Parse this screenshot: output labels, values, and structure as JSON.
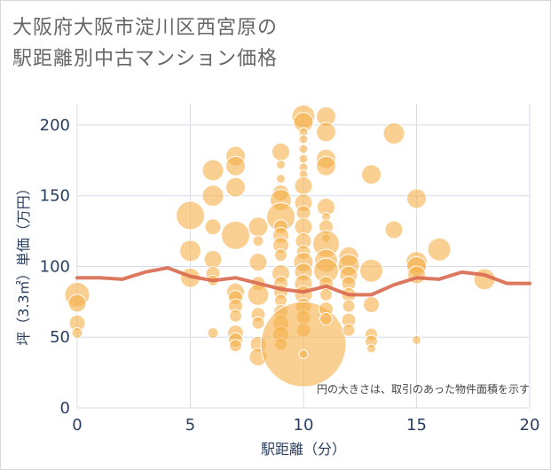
{
  "title_line1": "大阪府大阪市淀川区西宮原の",
  "title_line2": "駅距離別中古マンション価格",
  "annotation": "円の大きさは、取引のあった物件面積を示す",
  "colors": {
    "bubble_fill": "#f5b04a",
    "bubble_stroke": "#ffffff",
    "line": "#d9694f",
    "grid": "#d6dde8",
    "axis_text": "#2a3f5f"
  },
  "chart_data": {
    "type": "scatter",
    "title": "大阪府大阪市淀川区西宮原の 駅距離別中古マンション価格",
    "xlabel": "駅距離（分）",
    "ylabel": "坪（3.3㎡）単価（万円）",
    "xlim": [
      0,
      20
    ],
    "ylim": [
      0,
      215
    ],
    "xticks": [
      0,
      5,
      10,
      15,
      20
    ],
    "yticks": [
      0,
      50,
      100,
      150,
      200
    ],
    "grid": true,
    "series": [
      {
        "type": "bubble",
        "points": [
          {
            "x": 0,
            "y": 80,
            "s": 14
          },
          {
            "x": 0,
            "y": 74,
            "s": 10
          },
          {
            "x": 0,
            "y": 60,
            "s": 9
          },
          {
            "x": 0,
            "y": 53,
            "s": 6
          },
          {
            "x": 5,
            "y": 136,
            "s": 16
          },
          {
            "x": 5,
            "y": 111,
            "s": 12
          },
          {
            "x": 5,
            "y": 92,
            "s": 11
          },
          {
            "x": 6,
            "y": 168,
            "s": 12
          },
          {
            "x": 6,
            "y": 150,
            "s": 12
          },
          {
            "x": 6,
            "y": 128,
            "s": 9
          },
          {
            "x": 6,
            "y": 105,
            "s": 10
          },
          {
            "x": 6,
            "y": 95,
            "s": 8
          },
          {
            "x": 6,
            "y": 90,
            "s": 6
          },
          {
            "x": 6,
            "y": 53,
            "s": 6
          },
          {
            "x": 7,
            "y": 178,
            "s": 11
          },
          {
            "x": 7,
            "y": 171,
            "s": 11
          },
          {
            "x": 7,
            "y": 156,
            "s": 11
          },
          {
            "x": 7,
            "y": 122,
            "s": 16
          },
          {
            "x": 7,
            "y": 82,
            "s": 10
          },
          {
            "x": 7,
            "y": 78,
            "s": 8
          },
          {
            "x": 7,
            "y": 72,
            "s": 8
          },
          {
            "x": 7,
            "y": 65,
            "s": 7
          },
          {
            "x": 7,
            "y": 53,
            "s": 9
          },
          {
            "x": 7,
            "y": 48,
            "s": 8
          },
          {
            "x": 7,
            "y": 44,
            "s": 7
          },
          {
            "x": 8,
            "y": 128,
            "s": 11
          },
          {
            "x": 8,
            "y": 118,
            "s": 6
          },
          {
            "x": 8,
            "y": 103,
            "s": 10
          },
          {
            "x": 8,
            "y": 88,
            "s": 8
          },
          {
            "x": 8,
            "y": 80,
            "s": 12
          },
          {
            "x": 8,
            "y": 66,
            "s": 8
          },
          {
            "x": 8,
            "y": 60,
            "s": 7
          },
          {
            "x": 8,
            "y": 45,
            "s": 9
          },
          {
            "x": 8,
            "y": 36,
            "s": 10
          },
          {
            "x": 9,
            "y": 181,
            "s": 10
          },
          {
            "x": 9,
            "y": 172,
            "s": 5
          },
          {
            "x": 9,
            "y": 162,
            "s": 5
          },
          {
            "x": 9,
            "y": 152,
            "s": 9
          },
          {
            "x": 9,
            "y": 147,
            "s": 12
          },
          {
            "x": 9,
            "y": 135,
            "s": 16
          },
          {
            "x": 9,
            "y": 128,
            "s": 8
          },
          {
            "x": 9,
            "y": 122,
            "s": 9
          },
          {
            "x": 9,
            "y": 115,
            "s": 9
          },
          {
            "x": 9,
            "y": 108,
            "s": 7
          },
          {
            "x": 9,
            "y": 95,
            "s": 10
          },
          {
            "x": 9,
            "y": 88,
            "s": 8
          },
          {
            "x": 9,
            "y": 82,
            "s": 8
          },
          {
            "x": 9,
            "y": 76,
            "s": 7
          },
          {
            "x": 9,
            "y": 68,
            "s": 8
          },
          {
            "x": 9,
            "y": 60,
            "s": 9
          },
          {
            "x": 9,
            "y": 52,
            "s": 9
          },
          {
            "x": 9,
            "y": 45,
            "s": 7
          },
          {
            "x": 10,
            "y": 206,
            "s": 13
          },
          {
            "x": 10,
            "y": 202,
            "s": 11
          },
          {
            "x": 10,
            "y": 195,
            "s": 5
          },
          {
            "x": 10,
            "y": 190,
            "s": 5
          },
          {
            "x": 10,
            "y": 183,
            "s": 5
          },
          {
            "x": 10,
            "y": 176,
            "s": 5
          },
          {
            "x": 10,
            "y": 170,
            "s": 5
          },
          {
            "x": 10,
            "y": 165,
            "s": 5
          },
          {
            "x": 10,
            "y": 157,
            "s": 10
          },
          {
            "x": 10,
            "y": 145,
            "s": 10
          },
          {
            "x": 10,
            "y": 138,
            "s": 8
          },
          {
            "x": 10,
            "y": 128,
            "s": 10
          },
          {
            "x": 10,
            "y": 118,
            "s": 9
          },
          {
            "x": 10,
            "y": 110,
            "s": 8
          },
          {
            "x": 10,
            "y": 103,
            "s": 11
          },
          {
            "x": 10,
            "y": 96,
            "s": 10
          },
          {
            "x": 10,
            "y": 88,
            "s": 10
          },
          {
            "x": 10,
            "y": 80,
            "s": 10
          },
          {
            "x": 10,
            "y": 72,
            "s": 9
          },
          {
            "x": 10,
            "y": 64,
            "s": 8
          },
          {
            "x": 10,
            "y": 55,
            "s": 8
          },
          {
            "x": 10,
            "y": 45,
            "s": 48
          },
          {
            "x": 10,
            "y": 38,
            "s": 5
          },
          {
            "x": 11,
            "y": 206,
            "s": 11
          },
          {
            "x": 11,
            "y": 195,
            "s": 11
          },
          {
            "x": 11,
            "y": 176,
            "s": 11
          },
          {
            "x": 11,
            "y": 171,
            "s": 11
          },
          {
            "x": 11,
            "y": 142,
            "s": 10
          },
          {
            "x": 11,
            "y": 135,
            "s": 5
          },
          {
            "x": 11,
            "y": 128,
            "s": 8
          },
          {
            "x": 11,
            "y": 120,
            "s": 5
          },
          {
            "x": 11,
            "y": 116,
            "s": 15
          },
          {
            "x": 11,
            "y": 104,
            "s": 13
          },
          {
            "x": 11,
            "y": 97,
            "s": 14
          },
          {
            "x": 11,
            "y": 88,
            "s": 8
          },
          {
            "x": 11,
            "y": 80,
            "s": 7
          },
          {
            "x": 11,
            "y": 70,
            "s": 8
          },
          {
            "x": 11,
            "y": 63,
            "s": 7
          },
          {
            "x": 12,
            "y": 107,
            "s": 11
          },
          {
            "x": 12,
            "y": 101,
            "s": 12
          },
          {
            "x": 12,
            "y": 94,
            "s": 10
          },
          {
            "x": 12,
            "y": 88,
            "s": 8
          },
          {
            "x": 12,
            "y": 80,
            "s": 8
          },
          {
            "x": 12,
            "y": 72,
            "s": 7
          },
          {
            "x": 12,
            "y": 62,
            "s": 8
          },
          {
            "x": 12,
            "y": 55,
            "s": 7
          },
          {
            "x": 13,
            "y": 165,
            "s": 11
          },
          {
            "x": 13,
            "y": 97,
            "s": 13
          },
          {
            "x": 13,
            "y": 73,
            "s": 9
          },
          {
            "x": 13,
            "y": 52,
            "s": 7
          },
          {
            "x": 13,
            "y": 47,
            "s": 7
          },
          {
            "x": 13,
            "y": 42,
            "s": 5
          },
          {
            "x": 14,
            "y": 194,
            "s": 12
          },
          {
            "x": 14,
            "y": 126,
            "s": 10
          },
          {
            "x": 15,
            "y": 148,
            "s": 11
          },
          {
            "x": 15,
            "y": 103,
            "s": 12
          },
          {
            "x": 15,
            "y": 100,
            "s": 11
          },
          {
            "x": 15,
            "y": 94,
            "s": 10
          },
          {
            "x": 15,
            "y": 48,
            "s": 5
          },
          {
            "x": 16,
            "y": 112,
            "s": 13
          },
          {
            "x": 18,
            "y": 91,
            "s": 12
          }
        ]
      },
      {
        "type": "line",
        "points": [
          {
            "x": 0,
            "y": 92
          },
          {
            "x": 1,
            "y": 92
          },
          {
            "x": 2,
            "y": 91
          },
          {
            "x": 3,
            "y": 96
          },
          {
            "x": 4,
            "y": 99
          },
          {
            "x": 5,
            "y": 93
          },
          {
            "x": 6,
            "y": 90
          },
          {
            "x": 7,
            "y": 92
          },
          {
            "x": 8,
            "y": 88
          },
          {
            "x": 9,
            "y": 84
          },
          {
            "x": 10,
            "y": 82
          },
          {
            "x": 11,
            "y": 86
          },
          {
            "x": 12,
            "y": 80
          },
          {
            "x": 13,
            "y": 80
          },
          {
            "x": 14,
            "y": 87
          },
          {
            "x": 15,
            "y": 92
          },
          {
            "x": 16,
            "y": 91
          },
          {
            "x": 17,
            "y": 96
          },
          {
            "x": 18,
            "y": 94
          },
          {
            "x": 19,
            "y": 88
          },
          {
            "x": 20,
            "y": 88
          }
        ]
      }
    ]
  }
}
